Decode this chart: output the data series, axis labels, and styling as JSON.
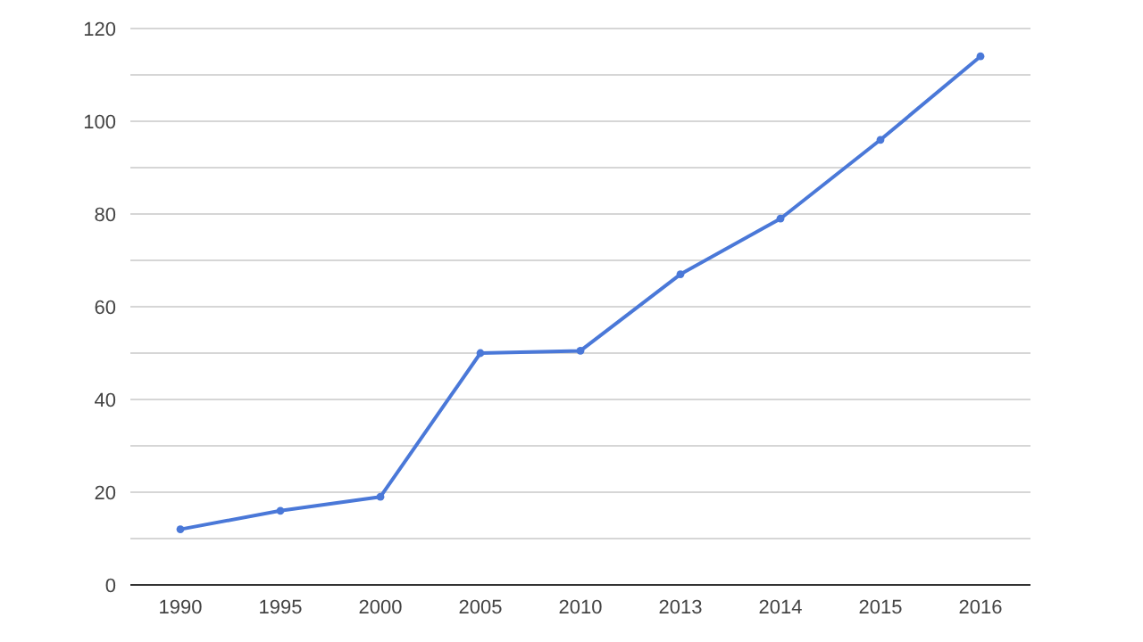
{
  "chart_data": {
    "type": "line",
    "categories": [
      "1990",
      "1995",
      "2000",
      "2005",
      "2010",
      "2013",
      "2014",
      "2015",
      "2016"
    ],
    "series": [
      {
        "color": "#4a78d8",
        "values": [
          12,
          16,
          19,
          50,
          50.5,
          67,
          79,
          96,
          114
        ]
      }
    ],
    "ylim": [
      0,
      120
    ],
    "yticks": [
      0,
      {
        "value": 10,
        "label": null
      },
      20,
      {
        "value": 30,
        "label": null
      },
      40,
      {
        "value": 50,
        "label": null
      },
      60,
      {
        "value": 70,
        "label": null
      },
      80,
      {
        "value": 90,
        "label": null
      },
      100,
      {
        "value": 110,
        "label": null
      },
      120
    ],
    "grid": "y",
    "marker": "circle",
    "line_style": "solid",
    "legend": false
  }
}
